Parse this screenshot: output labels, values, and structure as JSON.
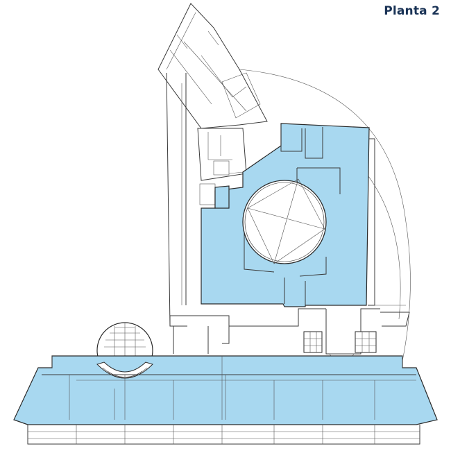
{
  "title": "Planta 2",
  "colors": {
    "highlight_zone": "#a8d8f0",
    "walls": "#2a2a2a",
    "title": "#1a3356",
    "background": "#ffffff"
  }
}
